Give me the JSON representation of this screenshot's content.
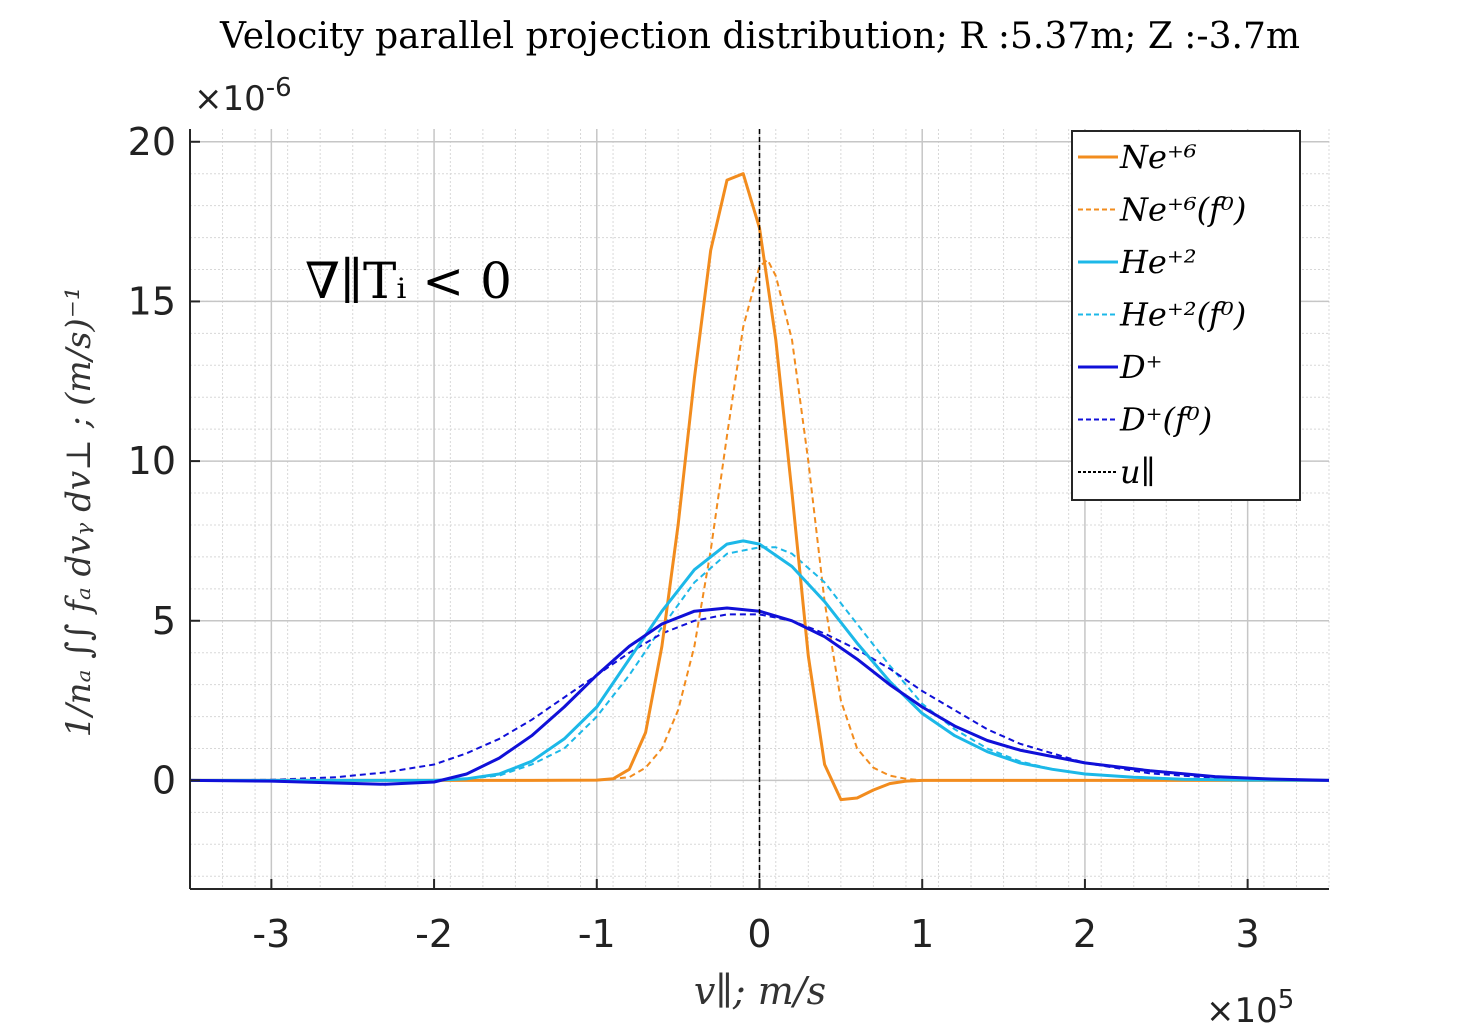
{
  "chart_data": {
    "type": "line",
    "title": "Velocity parallel projection distribution; R :5.37m; Z :-3.7m",
    "xlabel": "v∥; m/s",
    "ylabel": "1/nₐ ∫∫ fₐ dvᵧ dv⊥ ; (m/s)⁻¹",
    "x_multiplier": "×10",
    "x_multiplier_exp": "5",
    "y_multiplier": "×10",
    "y_multiplier_exp": "-6",
    "xlim": [
      -3.5,
      3.5
    ],
    "ylim": [
      -3.4,
      20.4
    ],
    "xticks": [
      -3,
      -2,
      -1,
      0,
      1,
      2,
      3
    ],
    "xtick_labels": [
      "-3",
      "-2",
      "-1",
      "0",
      "1",
      "2",
      "3"
    ],
    "yticks": [
      0,
      5,
      10,
      15,
      20
    ],
    "ytick_labels": [
      "0",
      "5",
      "10",
      "15",
      "20"
    ],
    "grid": true,
    "minor_grid": true,
    "legend_position": "top-right",
    "annotation": "∇∥Tᵢ < 0",
    "vline": {
      "x": 0.0,
      "label": "u∥",
      "color": "#000000"
    },
    "series": [
      {
        "name": "Ne+6",
        "legend_label": "Ne⁺⁶",
        "color": "#f28c1e",
        "style": "solid",
        "x": [
          -3.5,
          -1.4,
          -1.0,
          -0.9,
          -0.8,
          -0.7,
          -0.6,
          -0.5,
          -0.4,
          -0.3,
          -0.2,
          -0.1,
          0.0,
          0.1,
          0.2,
          0.3,
          0.4,
          0.5,
          0.6,
          0.7,
          0.8,
          0.9,
          1.0,
          3.5
        ],
        "values": [
          0,
          0,
          0.01,
          0.05,
          0.35,
          1.5,
          4.2,
          8.0,
          12.6,
          16.6,
          18.8,
          19.0,
          17.3,
          13.8,
          9.0,
          3.9,
          0.5,
          -0.6,
          -0.55,
          -0.3,
          -0.1,
          -0.02,
          0,
          0
        ]
      },
      {
        "name": "Ne+6 (f0)",
        "legend_label": "Ne⁺⁶(f⁰)",
        "color": "#f28c1e",
        "style": "dashed",
        "x": [
          -3.5,
          -1.0,
          -0.8,
          -0.7,
          -0.6,
          -0.5,
          -0.4,
          -0.3,
          -0.2,
          -0.1,
          0.0,
          0.05,
          0.1,
          0.2,
          0.3,
          0.4,
          0.5,
          0.6,
          0.7,
          0.8,
          0.9,
          1.0,
          3.5
        ],
        "values": [
          0,
          0,
          0.1,
          0.4,
          1.0,
          2.2,
          4.2,
          7.2,
          10.8,
          14.2,
          16.1,
          16.3,
          15.8,
          13.8,
          10.0,
          5.6,
          2.5,
          1.0,
          0.4,
          0.15,
          0.05,
          0,
          0
        ]
      },
      {
        "name": "He+2",
        "legend_label": "He⁺²",
        "color": "#1cb8e8",
        "style": "solid",
        "x": [
          -3.5,
          -2.0,
          -1.8,
          -1.6,
          -1.4,
          -1.2,
          -1.0,
          -0.8,
          -0.6,
          -0.4,
          -0.2,
          -0.1,
          0.0,
          0.2,
          0.4,
          0.6,
          0.8,
          1.0,
          1.2,
          1.4,
          1.6,
          1.8,
          2.0,
          2.3,
          2.6,
          3.0,
          3.5
        ],
        "values": [
          0,
          0,
          0.05,
          0.2,
          0.6,
          1.3,
          2.3,
          3.8,
          5.3,
          6.6,
          7.4,
          7.5,
          7.4,
          6.7,
          5.6,
          4.3,
          3.1,
          2.1,
          1.4,
          0.9,
          0.55,
          0.35,
          0.2,
          0.1,
          0.04,
          0.01,
          0
        ]
      },
      {
        "name": "He+2 (f0)",
        "legend_label": "He⁺²(f⁰)",
        "color": "#1cb8e8",
        "style": "dashed",
        "x": [
          -3.5,
          -2.0,
          -1.8,
          -1.6,
          -1.4,
          -1.2,
          -1.0,
          -0.8,
          -0.6,
          -0.4,
          -0.2,
          0.0,
          0.1,
          0.2,
          0.4,
          0.6,
          0.8,
          1.0,
          1.2,
          1.4,
          1.6,
          1.8,
          2.0,
          2.3,
          2.6,
          3.0,
          3.5
        ],
        "values": [
          0,
          0,
          0.05,
          0.15,
          0.5,
          1.0,
          2.0,
          3.3,
          4.8,
          6.2,
          7.1,
          7.3,
          7.3,
          7.1,
          6.2,
          4.9,
          3.6,
          2.4,
          1.6,
          1.0,
          0.6,
          0.35,
          0.2,
          0.1,
          0.04,
          0.01,
          0
        ]
      },
      {
        "name": "D+",
        "legend_label": "D⁺",
        "color": "#1010d8",
        "style": "solid",
        "x": [
          -3.5,
          -3.0,
          -2.6,
          -2.3,
          -2.0,
          -1.8,
          -1.6,
          -1.4,
          -1.2,
          -1.0,
          -0.8,
          -0.6,
          -0.4,
          -0.2,
          0.0,
          0.2,
          0.4,
          0.6,
          0.8,
          1.0,
          1.2,
          1.4,
          1.6,
          2.0,
          2.4,
          2.8,
          3.1,
          3.5
        ],
        "values": [
          0,
          -0.02,
          -0.08,
          -0.12,
          -0.05,
          0.2,
          0.7,
          1.4,
          2.3,
          3.3,
          4.2,
          4.9,
          5.3,
          5.4,
          5.3,
          5.0,
          4.5,
          3.8,
          3.0,
          2.3,
          1.7,
          1.25,
          0.95,
          0.55,
          0.3,
          0.12,
          0.05,
          0
        ]
      },
      {
        "name": "D+ (f0)",
        "legend_label": "D⁺(f⁰)",
        "color": "#1010d8",
        "style": "dashed",
        "x": [
          -3.5,
          -3.0,
          -2.6,
          -2.3,
          -2.0,
          -1.8,
          -1.6,
          -1.4,
          -1.2,
          -1.0,
          -0.8,
          -0.6,
          -0.4,
          -0.2,
          0.0,
          0.2,
          0.4,
          0.6,
          0.8,
          1.0,
          1.2,
          1.4,
          1.6,
          2.0,
          2.4,
          2.8,
          3.1,
          3.5
        ],
        "values": [
          0,
          0.02,
          0.1,
          0.25,
          0.5,
          0.85,
          1.3,
          1.9,
          2.6,
          3.3,
          4.0,
          4.6,
          5.0,
          5.2,
          5.2,
          5.0,
          4.6,
          4.1,
          3.5,
          2.8,
          2.2,
          1.6,
          1.15,
          0.55,
          0.22,
          0.08,
          0.03,
          0
        ]
      }
    ]
  }
}
